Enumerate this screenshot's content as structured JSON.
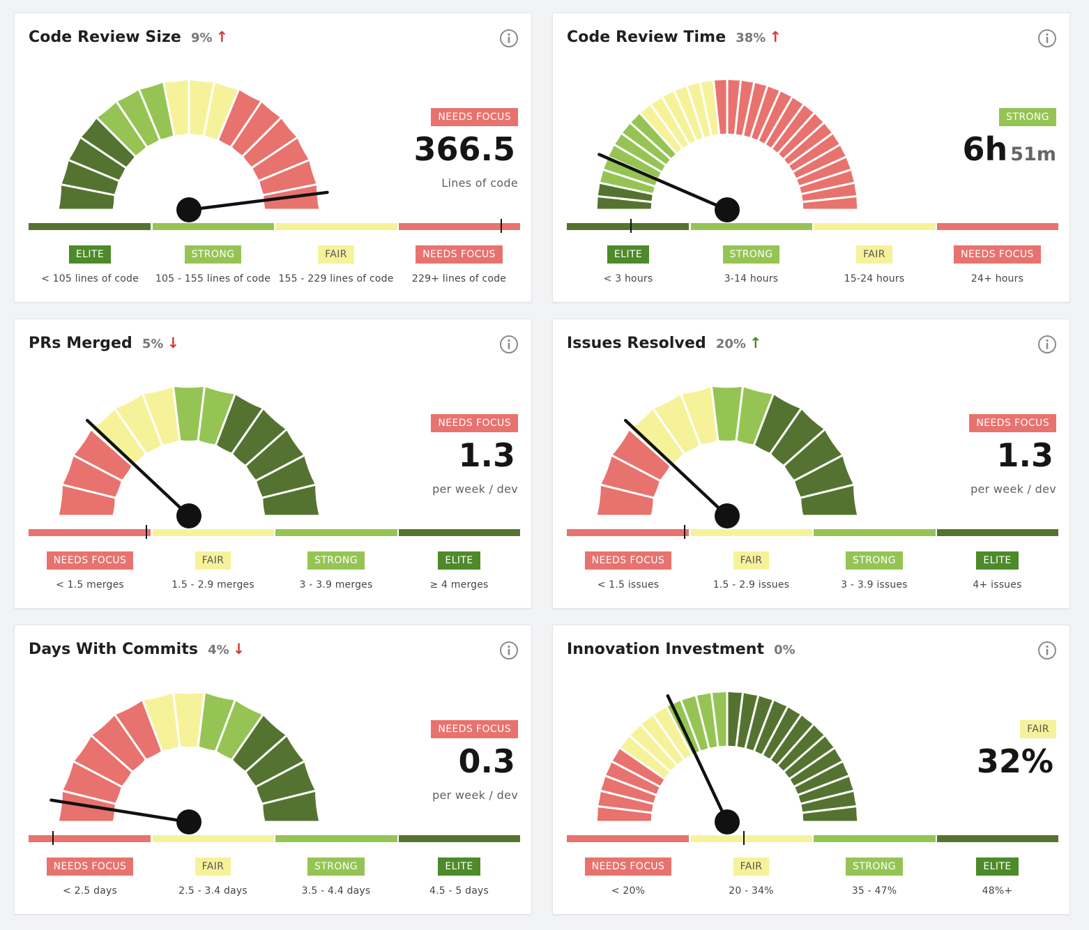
{
  "colors": {
    "needs_focus": "#e8726e",
    "fair": "#f6f29a",
    "strong": "#95c454",
    "elite": "#557330",
    "elite_badge": "#4d8a2a",
    "up_bad": "#d93a36",
    "up_good": "#4c8a2a",
    "down_bad": "#d93a36"
  },
  "cards": [
    {
      "title": "Code Review Size",
      "change": "9%",
      "arrow": "↑",
      "arrow_color": "up_bad",
      "status_label": "NEEDS FOCUS",
      "status_key": "needs_focus",
      "value": "366.5",
      "value_unit": "",
      "sub_label": "Lines of code",
      "needle_fraction": 0.96,
      "segments": [
        {
          "key": "elite",
          "slices": 4
        },
        {
          "key": "strong",
          "slices": 3
        },
        {
          "key": "fair",
          "slices": 3
        },
        {
          "key": "needs_focus",
          "slices": 6
        }
      ],
      "legend": [
        {
          "label": "ELITE",
          "key": "elite",
          "range": "< 105 lines of code"
        },
        {
          "label": "STRONG",
          "key": "strong",
          "range": "105 - 155 lines of code"
        },
        {
          "label": "FAIR",
          "key": "fair",
          "range": "155 - 229 lines of code"
        },
        {
          "label": "NEEDS FOCUS",
          "key": "needs_focus",
          "range": "229+ lines of code"
        }
      ]
    },
    {
      "title": "Code Review Time",
      "change": "38%",
      "arrow": "↑",
      "arrow_color": "up_bad",
      "status_label": "STRONG",
      "status_key": "strong",
      "value": "6h",
      "value_unit": "51m",
      "sub_label": "",
      "needle_fraction": 0.13,
      "segments": [
        {
          "key": "elite",
          "slices": 2
        },
        {
          "key": "strong",
          "slices": 6
        },
        {
          "key": "fair",
          "slices": 6
        },
        {
          "key": "needs_focus",
          "slices": 16
        }
      ],
      "legend": [
        {
          "label": "ELITE",
          "key": "elite",
          "range": "< 3 hours"
        },
        {
          "label": "STRONG",
          "key": "strong",
          "range": "3-14 hours"
        },
        {
          "label": "FAIR",
          "key": "fair",
          "range": "15-24 hours"
        },
        {
          "label": "NEEDS FOCUS",
          "key": "needs_focus",
          "range": "24+ hours"
        }
      ]
    },
    {
      "title": "PRs Merged",
      "change": "5%",
      "arrow": "↓",
      "arrow_color": "down_bad",
      "status_label": "NEEDS FOCUS",
      "status_key": "needs_focus",
      "value": "1.3",
      "value_unit": "",
      "sub_label": "per week / dev",
      "needle_fraction": 0.24,
      "segments": [
        {
          "key": "needs_focus",
          "slices": 3
        },
        {
          "key": "fair",
          "slices": 3
        },
        {
          "key": "strong",
          "slices": 2
        },
        {
          "key": "elite",
          "slices": 5
        }
      ],
      "legend": [
        {
          "label": "NEEDS FOCUS",
          "key": "needs_focus",
          "range": "< 1.5 merges"
        },
        {
          "label": "FAIR",
          "key": "fair",
          "range": "1.5 - 2.9 merges"
        },
        {
          "label": "STRONG",
          "key": "strong",
          "range": "3 - 3.9 merges"
        },
        {
          "label": "ELITE",
          "key": "elite",
          "range": "≥ 4 merges"
        }
      ]
    },
    {
      "title": "Issues Resolved",
      "change": "20%",
      "arrow": "↑",
      "arrow_color": "up_good",
      "status_label": "NEEDS FOCUS",
      "status_key": "needs_focus",
      "value": "1.3",
      "value_unit": "",
      "sub_label": "per week / dev",
      "needle_fraction": 0.24,
      "segments": [
        {
          "key": "needs_focus",
          "slices": 3
        },
        {
          "key": "fair",
          "slices": 3
        },
        {
          "key": "strong",
          "slices": 2
        },
        {
          "key": "elite",
          "slices": 5
        }
      ],
      "legend": [
        {
          "label": "NEEDS FOCUS",
          "key": "needs_focus",
          "range": "< 1.5 issues"
        },
        {
          "label": "FAIR",
          "key": "fair",
          "range": "1.5 - 2.9 issues"
        },
        {
          "label": "STRONG",
          "key": "strong",
          "range": "3 - 3.9 issues"
        },
        {
          "label": "ELITE",
          "key": "elite",
          "range": "4+ issues"
        }
      ]
    },
    {
      "title": "Days With Commits",
      "change": "4%",
      "arrow": "↓",
      "arrow_color": "down_bad",
      "status_label": "NEEDS FOCUS",
      "status_key": "needs_focus",
      "value": "0.3",
      "value_unit": "",
      "sub_label": "per week / dev",
      "needle_fraction": 0.05,
      "segments": [
        {
          "key": "needs_focus",
          "slices": 5
        },
        {
          "key": "fair",
          "slices": 2
        },
        {
          "key": "strong",
          "slices": 2
        },
        {
          "key": "elite",
          "slices": 4
        }
      ],
      "legend": [
        {
          "label": "NEEDS FOCUS",
          "key": "needs_focus",
          "range": "< 2.5 days"
        },
        {
          "label": "FAIR",
          "key": "fair",
          "range": "2.5 - 3.4 days"
        },
        {
          "label": "STRONG",
          "key": "strong",
          "range": "3.5 - 4.4 days"
        },
        {
          "label": "ELITE",
          "key": "elite",
          "range": "4.5 - 5 days"
        }
      ]
    },
    {
      "title": "Innovation Investment",
      "change": "0%",
      "arrow": "",
      "arrow_color": "up_good",
      "status_label": "FAIR",
      "status_key": "fair",
      "value": "32%",
      "value_unit": "",
      "sub_label": "",
      "needle_fraction": 0.36,
      "segments": [
        {
          "key": "needs_focus",
          "slices": 5
        },
        {
          "key": "fair",
          "slices": 4
        },
        {
          "key": "strong",
          "slices": 4
        },
        {
          "key": "elite",
          "slices": 13
        }
      ],
      "legend": [
        {
          "label": "NEEDS FOCUS",
          "key": "needs_focus",
          "range": "< 20%"
        },
        {
          "label": "FAIR",
          "key": "fair",
          "range": "20 - 34%"
        },
        {
          "label": "STRONG",
          "key": "strong",
          "range": "35 - 47%"
        },
        {
          "label": "ELITE",
          "key": "elite",
          "range": "48%+"
        }
      ]
    }
  ]
}
